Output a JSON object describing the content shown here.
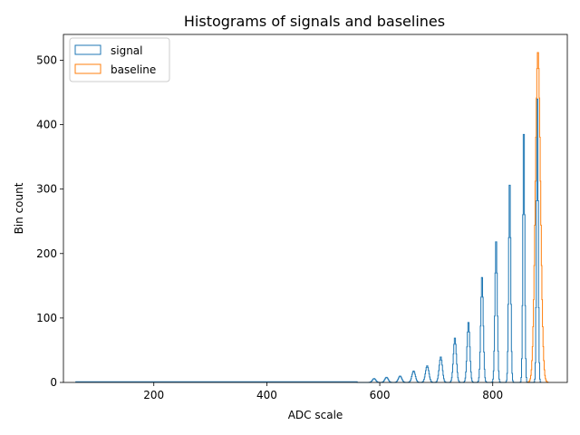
{
  "chart_data": {
    "type": "histogram",
    "title": "Histograms of signals and baselines",
    "xlabel": "ADC scale",
    "ylabel": "Bin count",
    "xlim": [
      40,
      932
    ],
    "ylim": [
      0,
      540
    ],
    "xticks": [
      200,
      400,
      600,
      800
    ],
    "yticks": [
      0,
      100,
      200,
      300,
      400,
      500
    ],
    "grid": false,
    "legend_position": "top-left",
    "series": [
      {
        "name": "signal",
        "color": "#1f77b4",
        "flat_level": {
          "x_range": [
            62,
            560
          ],
          "value": 1
        },
        "peaks": [
          {
            "x": 590,
            "y": 6,
            "w": 3
          },
          {
            "x": 612,
            "y": 8,
            "w": 3
          },
          {
            "x": 636,
            "y": 10,
            "w": 3
          },
          {
            "x": 660,
            "y": 18,
            "w": 3
          },
          {
            "x": 684,
            "y": 26,
            "w": 3
          },
          {
            "x": 708,
            "y": 40,
            "w": 2.8
          },
          {
            "x": 733,
            "y": 70,
            "w": 2.6
          },
          {
            "x": 757,
            "y": 95,
            "w": 2.4
          },
          {
            "x": 781,
            "y": 167,
            "w": 2.2
          },
          {
            "x": 806,
            "y": 225,
            "w": 2.0
          },
          {
            "x": 830,
            "y": 318,
            "w": 1.8
          },
          {
            "x": 855,
            "y": 404,
            "w": 1.6
          },
          {
            "x": 879,
            "y": 465,
            "w": 1.5
          }
        ]
      },
      {
        "name": "baseline",
        "color": "#ff7f0e",
        "peaks": [
          {
            "x": 880,
            "y": 515,
            "w": 4.5
          }
        ]
      }
    ]
  }
}
